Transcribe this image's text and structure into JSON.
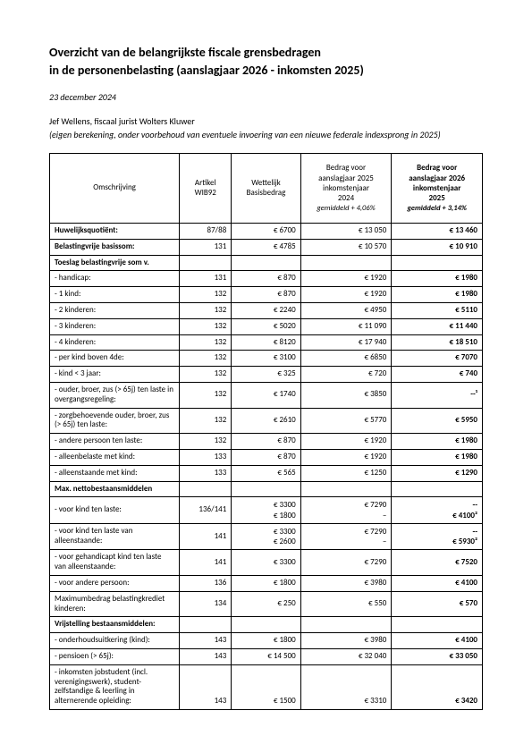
{
  "title_line1": "Overzicht van de belangrijkste fiscale grensbedragen",
  "title_line2": "in de personenbelasting (aanslagjaar 2026 - inkomsten 2025)",
  "date": "23 december 2024",
  "author": "Jef Wellens, fiscaal jurist Wolters Kluwer",
  "note": "(eigen berekening, onder voorbehoud van eventuele invoering van een nieuwe federale indexsprong in 2025)",
  "headers": {
    "desc": "Omschrijving",
    "art": "Artikel WIB92",
    "base": "Wettelijk Basisbedrag",
    "y25_l1": "Bedrag voor",
    "y25_l2": "aanslagjaar 2025",
    "y25_l3": "inkomstenjaar",
    "y25_l4": "2024",
    "y25_l5": "gemiddeld + 4,06%",
    "y26_l1": "Bedrag voor",
    "y26_l2": "aanslagjaar 2026",
    "y26_l3": "inkomstenjaar",
    "y26_l4": "2025",
    "y26_l5": "gemiddeld + 3,14%"
  },
  "r": {
    "huwelijksquotient": {
      "desc": "Huwelijksquotiënt:",
      "art": "87/88",
      "base": "€ 6700",
      "y25": "€ 13 050",
      "y26": "€ 13 460"
    },
    "belastingvrije": {
      "desc": "Belastingvrije basissom:",
      "art": "131",
      "base": "€ 4785",
      "y25": "€ 10 570",
      "y26": "€ 10 910"
    },
    "toeslag_header": {
      "desc": "Toeslag belastingvrije som v."
    },
    "handicap": {
      "desc": "- handicap:",
      "art": "131",
      "base": "€ 870",
      "y25": "€ 1920",
      "y26": "€ 1980"
    },
    "kind1": {
      "desc": "- 1 kind:",
      "art": "132",
      "base": "€ 870",
      "y25": "€ 1920",
      "y26": "€ 1980"
    },
    "kind2": {
      "desc": "- 2 kinderen:",
      "art": "132",
      "base": "€ 2240",
      "y25": "€ 4950",
      "y26": "€ 5110"
    },
    "kind3": {
      "desc": "- 3 kinderen:",
      "art": "132",
      "base": "€ 5020",
      "y25": "€ 11 090",
      "y26": "€ 11 440"
    },
    "kind4": {
      "desc": "- 4 kinderen:",
      "art": "132",
      "base": "€ 8120",
      "y25": "€ 17 940",
      "y26": "€ 18 510"
    },
    "kind4plus": {
      "desc": "- per kind boven 4de:",
      "art": "132",
      "base": "€ 3100",
      "y25": "€ 6850",
      "y26": "€ 7070"
    },
    "kindlt3": {
      "desc": "- kind < 3 jaar:",
      "art": "132",
      "base": "€ 325",
      "y25": "€ 720",
      "y26": "€ 740"
    },
    "ouder_overgang": {
      "desc": "- ouder, broer, zus (> 65j) ten laste in overgangsregeling:",
      "art": "132",
      "base": "€ 1740",
      "y25": "€ 3850",
      "y26": "--¹"
    },
    "zorgbehoevende": {
      "desc": "- zorgbehoevende ouder, broer, zus (> 65j) ten laste:",
      "art": "132",
      "base": "€ 2610",
      "y25": "€ 5770",
      "y26": "€ 5950"
    },
    "andere_persoon": {
      "desc": "- andere persoon ten laste:",
      "art": "132",
      "base": "€ 870",
      "y25": "€ 1920",
      "y26": "€ 1980"
    },
    "alleenbelaste": {
      "desc": "- alleenbelaste met kind:",
      "art": "133",
      "base": "€ 870",
      "y25": "€ 1920",
      "y26": "€ 1980"
    },
    "alleenstaande": {
      "desc": "- alleenstaande met kind:",
      "art": "133",
      "base": "€ 565",
      "y25": "€ 1250",
      "y26": "€ 1290"
    },
    "max_header": {
      "desc": "Max. nettobestaansmiddelen"
    },
    "kind_tenlaste_a": {
      "desc": "- voor kind ten laste:",
      "art": "136/141",
      "base_l1": "€ 3300",
      "base_l2": "€ 1800",
      "y25_l1": "€ 7290",
      "y25_l2": "–",
      "y26_l1": "--",
      "y26_l2": "€ 4100²"
    },
    "kind_tenlaste_all": {
      "desc": "- voor kind ten laste van alleenstaande:",
      "art": "141",
      "base_l1": "€ 3300",
      "base_l2": "€ 2600",
      "y25_l1": "€ 7290",
      "y25_l2": "–",
      "y26_l1": "--",
      "y26_l2": "€ 5930²"
    },
    "gehandicapt": {
      "desc": "- voor gehandicapt kind ten laste van alleenstaande:",
      "art": "141",
      "base": "€ 3300",
      "y25": "€ 7290",
      "y26": "€ 7520"
    },
    "andere_p2": {
      "desc": "- voor andere persoon:",
      "art": "136",
      "base": "€ 1800",
      "y25": "€ 3980",
      "y26": "€ 4100"
    },
    "maxkrediet": {
      "desc": "Maximumbedrag belastingkrediet kinderen:",
      "art": "134",
      "base": "€ 250",
      "y25": "€ 550",
      "y26": "€ 570"
    },
    "vrijstelling_hdr": {
      "desc": "Vrijstelling bestaansmiddelen:"
    },
    "onderhoud": {
      "desc": "- onderhoudsuitkering (kind):",
      "art": "143",
      "base": "€ 1800",
      "y25": "€ 3980",
      "y26": "€ 4100"
    },
    "pensioen": {
      "desc": "- pensioen (> 65j):",
      "art": "143",
      "base": "€ 14 500",
      "y25": "€ 32 040",
      "y26": "€ 33 050"
    },
    "jobstudent": {
      "desc": "- inkomsten jobstudent (incl. verenigingswerk), student-zelfstandige & leerling in alternerende opleiding:",
      "art": "143",
      "base": "€ 1500",
      "y25": "€ 3310",
      "y26": "€ 3420"
    }
  }
}
